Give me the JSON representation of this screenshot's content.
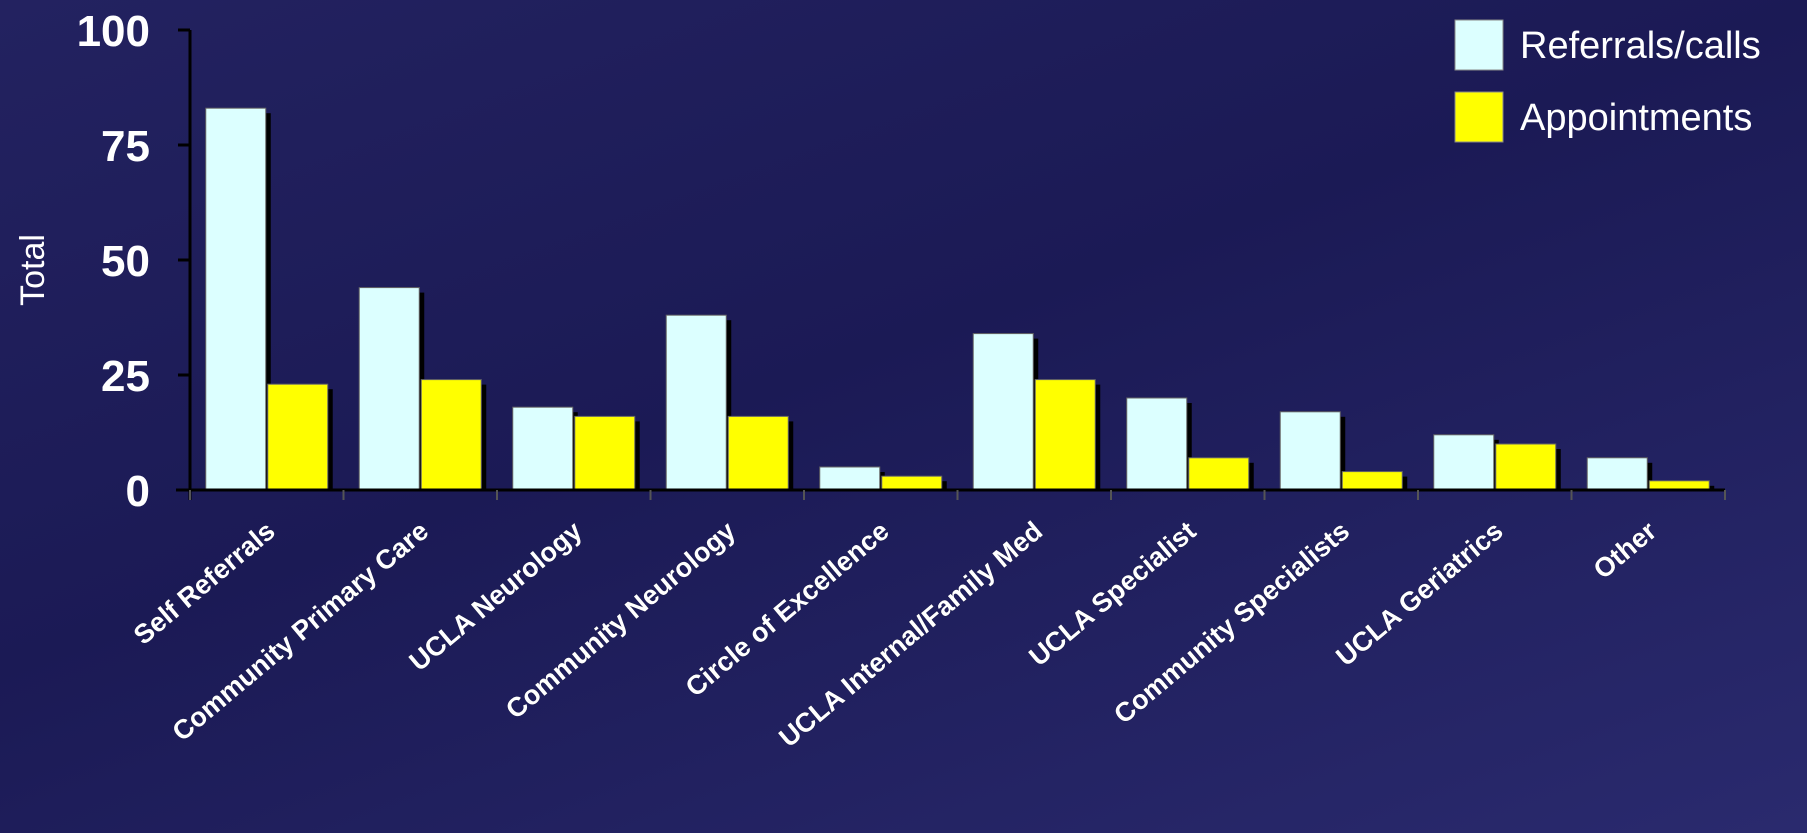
{
  "chart_data": {
    "type": "bar",
    "title": "",
    "xlabel": "",
    "ylabel": "Total",
    "ylim": [
      0,
      100
    ],
    "yticks": [
      0,
      25,
      50,
      75,
      100
    ],
    "grid": false,
    "legend_position": "top-right",
    "categories": [
      "Self Referrals",
      "Community Primary Care",
      "UCLA Neurology",
      "Community Neurology",
      "Circle of Excellence",
      "UCLA Internal/Family Med",
      "UCLA Specialist",
      "Community Specialists",
      "UCLA Geriatrics",
      "Other"
    ],
    "series": [
      {
        "name": "Referrals/calls",
        "color": "#dcffff",
        "values": [
          83,
          44,
          18,
          38,
          5,
          34,
          20,
          17,
          12,
          7
        ]
      },
      {
        "name": "Appointments",
        "color": "#ffff00",
        "values": [
          23,
          24,
          16,
          16,
          3,
          24,
          7,
          4,
          10,
          2
        ]
      }
    ]
  }
}
